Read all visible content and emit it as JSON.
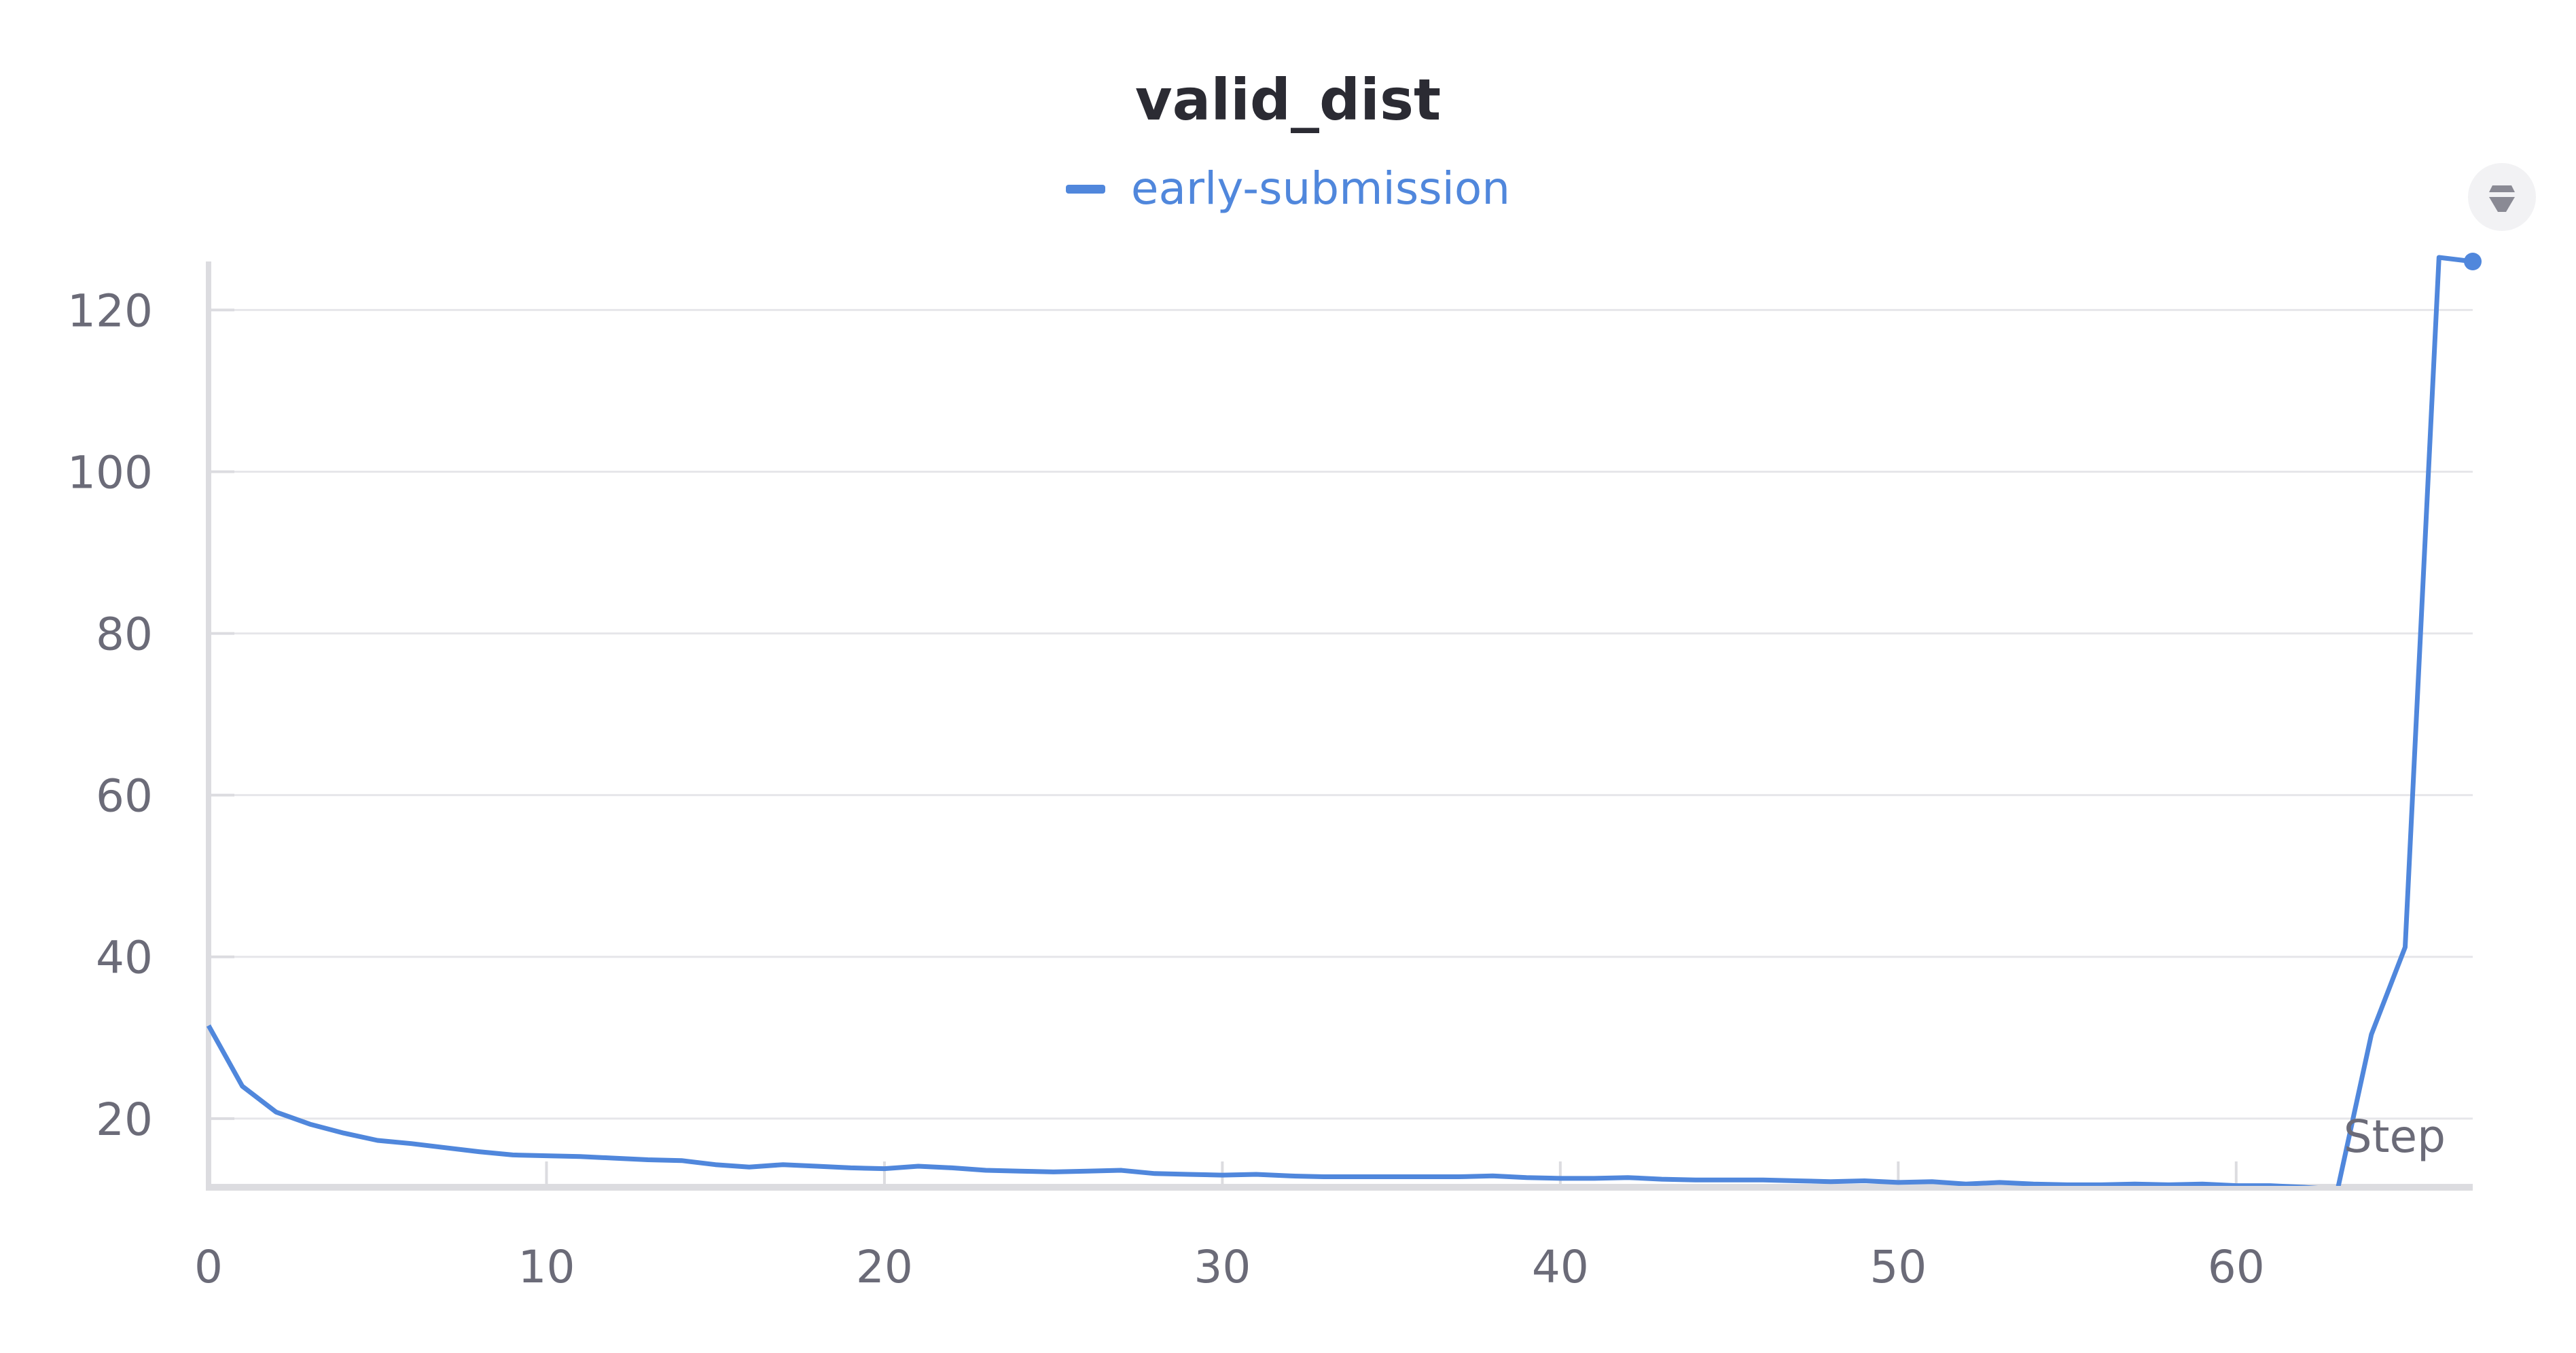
{
  "chart_data": {
    "type": "line",
    "title": "valid_dist",
    "xlabel": "Step",
    "ylabel": "",
    "xlim": [
      0,
      67
    ],
    "ylim": [
      11.5,
      126
    ],
    "x_ticks": [
      0,
      10,
      20,
      30,
      40,
      50,
      60
    ],
    "y_ticks": [
      20,
      40,
      60,
      80,
      100,
      120
    ],
    "grid": true,
    "legend_position": "top-center",
    "series": [
      {
        "name": "early-submission",
        "color": "#5087dc",
        "x": [
          0,
          1,
          2,
          3,
          4,
          5,
          6,
          7,
          8,
          9,
          10,
          11,
          12,
          13,
          14,
          15,
          16,
          17,
          18,
          19,
          20,
          21,
          22,
          23,
          24,
          25,
          26,
          27,
          28,
          29,
          30,
          31,
          32,
          33,
          34,
          35,
          36,
          37,
          38,
          39,
          40,
          41,
          42,
          43,
          44,
          45,
          46,
          47,
          48,
          49,
          50,
          51,
          52,
          53,
          54,
          55,
          56,
          57,
          58,
          59,
          60,
          61,
          62,
          63,
          64,
          65,
          66,
          67
        ],
        "y": [
          31.5,
          24,
          20.8,
          19.3,
          18.2,
          17.3,
          16.9,
          16.4,
          15.9,
          15.5,
          15.4,
          15.3,
          15.1,
          14.9,
          14.8,
          14.3,
          14.0,
          14.3,
          14.1,
          13.9,
          13.8,
          14.1,
          13.9,
          13.6,
          13.5,
          13.4,
          13.5,
          13.6,
          13.2,
          13.1,
          13.0,
          13.1,
          12.9,
          12.8,
          12.8,
          12.8,
          12.8,
          12.8,
          12.9,
          12.7,
          12.6,
          12.6,
          12.7,
          12.5,
          12.4,
          12.4,
          12.4,
          12.3,
          12.2,
          12.3,
          12.1,
          12.2,
          11.9,
          12.1,
          11.9,
          11.8,
          11.8,
          11.9,
          11.8,
          11.9,
          11.7,
          11.7,
          11.5,
          11.2,
          30.4,
          41.2,
          126.5,
          126.0
        ]
      }
    ],
    "last_point_marker": true
  },
  "menu_icon": "chevron-up-down-icon"
}
